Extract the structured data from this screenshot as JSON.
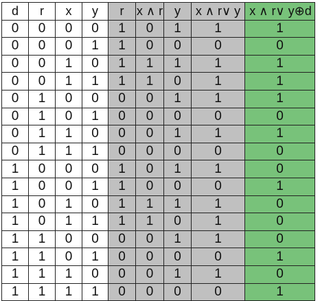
{
  "headers": [
    "d",
    "r",
    "x",
    "y",
    "r",
    "x ∧ r",
    "y",
    "x ∧ r∨ y",
    "x ∧ r∨ y⊕d"
  ],
  "rows": [
    [
      "0",
      "0",
      "0",
      "0",
      "1",
      "0",
      "1",
      "1",
      "1"
    ],
    [
      "0",
      "0",
      "0",
      "1",
      "1",
      "0",
      "0",
      "0",
      "0"
    ],
    [
      "0",
      "0",
      "1",
      "0",
      "1",
      "1",
      "1",
      "1",
      "1"
    ],
    [
      "0",
      "0",
      "1",
      "1",
      "1",
      "1",
      "0",
      "1",
      "1"
    ],
    [
      "0",
      "1",
      "0",
      "0",
      "0",
      "0",
      "1",
      "1",
      "1"
    ],
    [
      "0",
      "1",
      "0",
      "1",
      "0",
      "0",
      "0",
      "0",
      "0"
    ],
    [
      "0",
      "1",
      "1",
      "0",
      "0",
      "0",
      "1",
      "1",
      "1"
    ],
    [
      "0",
      "1",
      "1",
      "1",
      "0",
      "0",
      "0",
      "0",
      "0"
    ],
    [
      "1",
      "0",
      "0",
      "0",
      "1",
      "0",
      "1",
      "1",
      "0"
    ],
    [
      "1",
      "0",
      "0",
      "1",
      "1",
      "0",
      "0",
      "0",
      "1"
    ],
    [
      "1",
      "0",
      "1",
      "0",
      "1",
      "1",
      "1",
      "1",
      "0"
    ],
    [
      "1",
      "0",
      "1",
      "1",
      "1",
      "1",
      "0",
      "1",
      "0"
    ],
    [
      "1",
      "1",
      "0",
      "0",
      "0",
      "0",
      "1",
      "1",
      "0"
    ],
    [
      "1",
      "1",
      "0",
      "1",
      "0",
      "0",
      "0",
      "0",
      "1"
    ],
    [
      "1",
      "1",
      "1",
      "0",
      "0",
      "0",
      "1",
      "1",
      "0"
    ],
    [
      "1",
      "1",
      "1",
      "1",
      "0",
      "0",
      "0",
      "0",
      "1"
    ]
  ],
  "colors": {
    "gray": "#c0c0c0",
    "green": "#78c27a",
    "border": "#222222"
  }
}
